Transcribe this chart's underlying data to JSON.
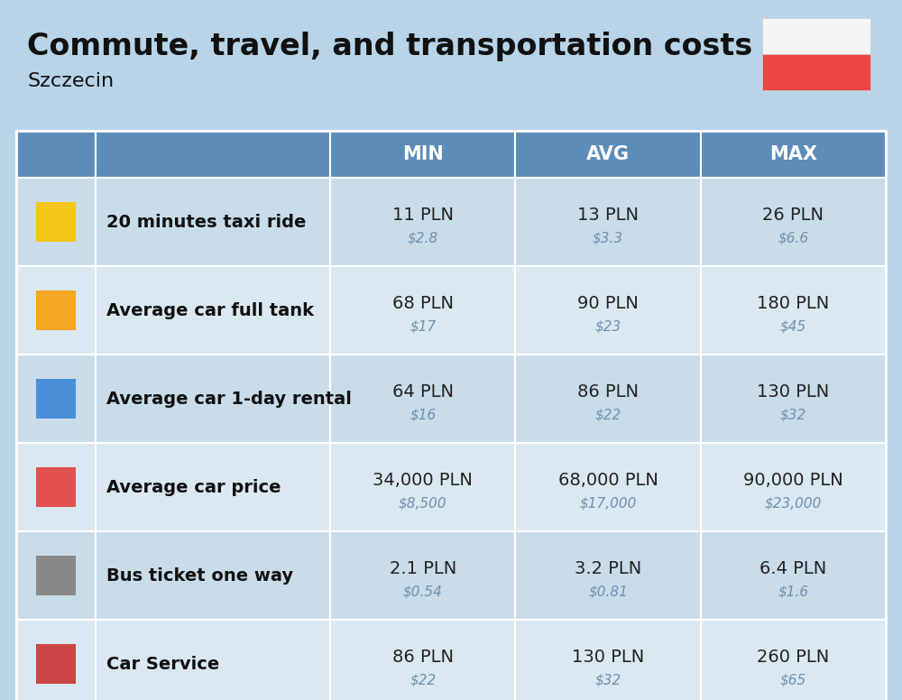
{
  "title": "Commute, travel, and transportation costs",
  "subtitle": "Szczecin",
  "background_color": "#b8d4e8",
  "header_bg_color": "#5b8db8",
  "header_text_color": "#ffffff",
  "row_bg_odd": "#c8dcea",
  "row_bg_even": "#dae8f2",
  "label_text_color": "#111111",
  "value_text_color": "#222222",
  "subvalue_text_color": "#7090aa",
  "columns": [
    "MIN",
    "AVG",
    "MAX"
  ],
  "rows": [
    {
      "label": "20 minutes taxi ride",
      "icon_color": "#f5c518",
      "values": [
        "11 PLN",
        "13 PLN",
        "26 PLN"
      ],
      "subvalues": [
        "$2.8",
        "$3.3",
        "$6.6"
      ]
    },
    {
      "label": "Average car full tank",
      "icon_color": "#f5a623",
      "values": [
        "68 PLN",
        "90 PLN",
        "180 PLN"
      ],
      "subvalues": [
        "$17",
        "$23",
        "$45"
      ]
    },
    {
      "label": "Average car 1-day rental",
      "icon_color": "#4a90d9",
      "values": [
        "64 PLN",
        "86 PLN",
        "130 PLN"
      ],
      "subvalues": [
        "$16",
        "$22",
        "$32"
      ]
    },
    {
      "label": "Average car price",
      "icon_color": "#e05050",
      "values": [
        "34,000 PLN",
        "68,000 PLN",
        "90,000 PLN"
      ],
      "subvalues": [
        "$8,500",
        "$17,000",
        "$23,000"
      ]
    },
    {
      "label": "Bus ticket one way",
      "icon_color": "#888888",
      "values": [
        "2.1 PLN",
        "3.2 PLN",
        "6.4 PLN"
      ],
      "subvalues": [
        "$0.54",
        "$0.81",
        "$1.6"
      ]
    },
    {
      "label": "Car Service",
      "icon_color": "#cc4444",
      "values": [
        "86 PLN",
        "130 PLN",
        "260 PLN"
      ],
      "subvalues": [
        "$22",
        "$32",
        "$65"
      ]
    }
  ],
  "flag_white": "#f5f5f5",
  "flag_red": "#ee4444"
}
